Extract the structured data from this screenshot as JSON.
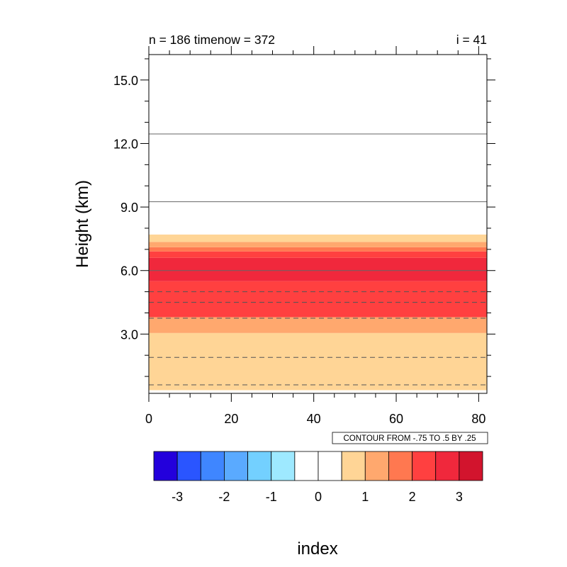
{
  "chart_data": {
    "type": "heatmap",
    "title_left": "n = 186 timenow = 372",
    "title_right": "i = 41",
    "xlabel": "index",
    "ylabel": "Height (km)",
    "xlim": [
      0,
      82
    ],
    "ylim": [
      0.2,
      16.2
    ],
    "x_ticks": [
      0,
      20,
      40,
      60,
      80
    ],
    "x_tick_labels": [
      "0",
      "20",
      "40",
      "60",
      "80"
    ],
    "y_ticks": [
      3.0,
      6.0,
      9.0,
      12.0,
      15.0
    ],
    "y_tick_labels": [
      "3.0",
      "6.0",
      "9.0",
      "12.0",
      "15.0"
    ],
    "contour_info": "CONTOUR FROM -.75 TO .5 BY .25",
    "fill_bands": [
      {
        "y0": 0.35,
        "y1": 3.05,
        "level": 8
      },
      {
        "y0": 3.05,
        "y1": 3.8,
        "level": 9
      },
      {
        "y0": 3.8,
        "y1": 5.5,
        "level": 11
      },
      {
        "y0": 5.5,
        "y1": 6.6,
        "level": 12
      },
      {
        "y0": 6.6,
        "y1": 6.9,
        "level": 11
      },
      {
        "y0": 6.9,
        "y1": 7.1,
        "level": 10
      },
      {
        "y0": 7.1,
        "y1": 7.35,
        "level": 9
      },
      {
        "y0": 7.35,
        "y1": 7.7,
        "level": 8
      }
    ],
    "contour_lines": [
      {
        "y": 0.6,
        "style": "dashed"
      },
      {
        "y": 1.9,
        "style": "dashed"
      },
      {
        "y": 3.75,
        "style": "dashed"
      },
      {
        "y": 4.5,
        "style": "dashed"
      },
      {
        "y": 5.0,
        "style": "dashed"
      },
      {
        "y": 6.0,
        "style": "solid"
      },
      {
        "y": 9.25,
        "style": "solid"
      },
      {
        "y": 12.45,
        "style": "solid"
      }
    ],
    "colorbar": {
      "colors": [
        "#2300dc",
        "#2a55ff",
        "#3f86ff",
        "#5aaaff",
        "#73d0ff",
        "#9ee9ff",
        "#ffffff",
        "#ffffff",
        "#ffd596",
        "#ffa86e",
        "#ff7850",
        "#ff4040",
        "#f0283c",
        "#d2142d"
      ],
      "tick_labels": [
        "-3",
        "-2",
        "-1",
        "0",
        "1",
        "2",
        "3"
      ]
    }
  }
}
